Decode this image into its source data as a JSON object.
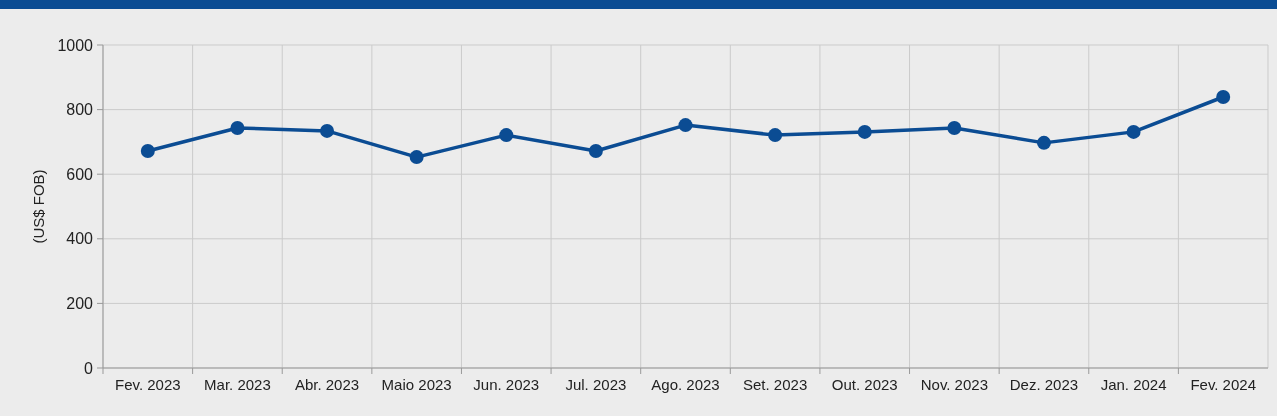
{
  "chart_data": {
    "type": "line",
    "ylabel": "(US$ FOB)",
    "categories": [
      "Fev. 2023",
      "Mar. 2023",
      "Abr. 2023",
      "Maio 2023",
      "Jun. 2023",
      "Jul. 2023",
      "Ago. 2023",
      "Set. 2023",
      "Out. 2023",
      "Nov. 2023",
      "Dez. 2023",
      "Jan. 2024",
      "Fev. 2024"
    ],
    "series": [
      {
        "color": "#0b4c93",
        "values": [
          672,
          743,
          734,
          653,
          721,
          672,
          752,
          721,
          731,
          743,
          697,
          731,
          839
        ]
      }
    ],
    "ylim": [
      0,
      1000
    ],
    "yticks": [
      0,
      200,
      400,
      600,
      800,
      1000
    ],
    "grid": true,
    "marker": "circle",
    "line_style": "solid"
  }
}
